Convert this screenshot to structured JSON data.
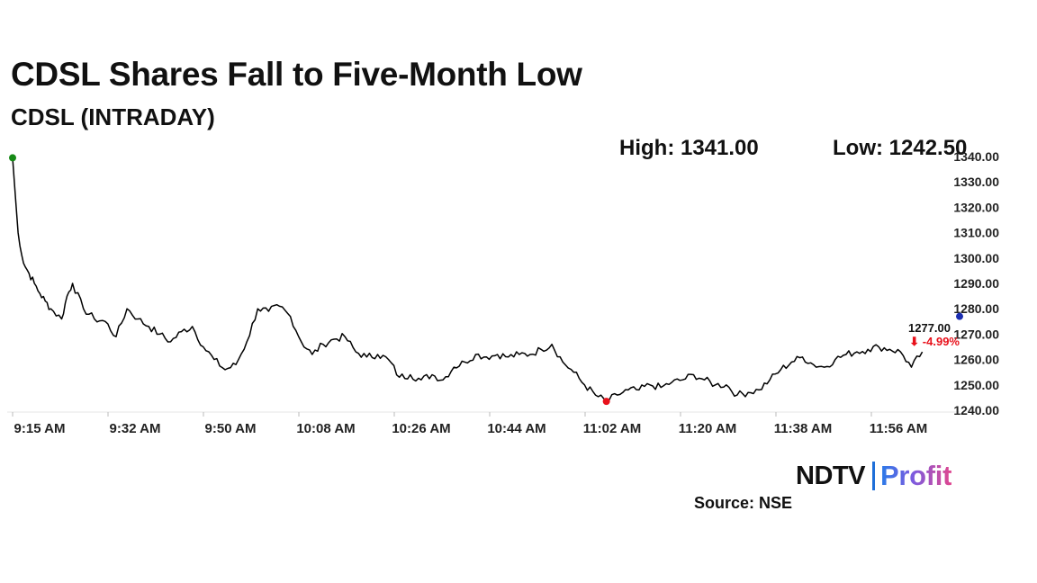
{
  "header": {
    "title": "CDSL Shares Fall to Five-Month Low",
    "subtitle": "CDSL (INTRADAY)",
    "high_text": "High: 1341.00",
    "low_text": "Low: 1242.50"
  },
  "last_price": {
    "value_text": "1277.00",
    "change_text": "⬇ -4.99%",
    "change_color": "#e8111b"
  },
  "brand": {
    "ndtv": "NDTV",
    "profit": "Profit"
  },
  "source_text": "Source: NSE",
  "chart_data": {
    "type": "line",
    "title": "CDSL Shares Fall to Five-Month Low",
    "subtitle": "CDSL (INTRADAY)",
    "xlabel": "",
    "ylabel": "",
    "x_ticks": [
      "9:15 AM",
      "9:32 AM",
      "9:50 AM",
      "10:08 AM",
      "10:26 AM",
      "10:44 AM",
      "11:02 AM",
      "11:20 AM",
      "11:38 AM",
      "11:56 AM"
    ],
    "y_ticks": [
      "1240.00",
      "1250.00",
      "1260.00",
      "1270.00",
      "1280.00",
      "1290.00",
      "1300.00",
      "1310.00",
      "1320.00",
      "1330.00",
      "1340.00"
    ],
    "ylim": [
      1240,
      1340
    ],
    "x_range": [
      "9:15",
      "12:09"
    ],
    "grid": false,
    "legend": "none",
    "line_color": "#000000",
    "high_marker_color": "#178a17",
    "low_marker_color": "#e8111b",
    "last_marker_color": "#1a2db0",
    "series": [
      {
        "x": [
          "9:15",
          "9:16",
          "9:17",
          "9:18",
          "9:19",
          "9:20",
          "9:21",
          "9:22",
          "9:24",
          "9:25",
          "9:26",
          "9:28",
          "9:30",
          "9:32",
          "9:34",
          "9:36",
          "9:38",
          "9:40",
          "9:42",
          "9:44",
          "9:46",
          "9:48",
          "9:50",
          "9:52",
          "9:54",
          "9:56",
          "9:58",
          "10:00",
          "10:02",
          "10:04",
          "10:06",
          "10:08",
          "10:10",
          "10:12",
          "10:14",
          "10:16",
          "10:18",
          "10:20",
          "10:22",
          "10:24",
          "10:26",
          "10:28",
          "10:30",
          "10:32",
          "10:34",
          "10:36",
          "10:38",
          "10:40",
          "10:42",
          "10:44",
          "10:46",
          "10:48",
          "10:50",
          "10:52",
          "10:54",
          "10:56",
          "10:58",
          "11:00",
          "11:02",
          "11:04",
          "11:06",
          "11:08",
          "11:10",
          "11:12",
          "11:14",
          "11:16",
          "11:18",
          "11:20",
          "11:22",
          "11:24",
          "11:26",
          "11:28",
          "11:30",
          "11:32",
          "11:34",
          "11:36",
          "11:38",
          "11:40",
          "11:42",
          "11:44",
          "11:46",
          "11:48",
          "11:50",
          "11:52",
          "11:54",
          "11:56",
          "11:58",
          "12:00",
          "12:02"
        ],
        "y": [
          1339.5,
          1310,
          1298,
          1294,
          1290,
          1286,
          1283,
          1280,
          1276,
          1285,
          1290,
          1280,
          1276,
          1275,
          1269,
          1280,
          1276,
          1273,
          1270,
          1267,
          1271,
          1273,
          1265,
          1260,
          1256,
          1258,
          1267,
          1280,
          1279,
          1281,
          1277,
          1267,
          1262,
          1266,
          1268,
          1269,
          1263,
          1261,
          1262,
          1260,
          1253,
          1254,
          1252,
          1254,
          1252,
          1257,
          1259,
          1262,
          1261,
          1262,
          1261,
          1262,
          1262,
          1264,
          1266,
          1259,
          1255,
          1250,
          1246,
          1243.5,
          1246,
          1248,
          1248,
          1250,
          1249,
          1251,
          1252,
          1254,
          1252,
          1250,
          1250,
          1246,
          1247,
          1248,
          1252,
          1256,
          1259,
          1261,
          1258,
          1257,
          1260,
          1262,
          1263,
          1264,
          1265,
          1264,
          1263,
          1257,
          1263
        ]
      }
    ]
  }
}
